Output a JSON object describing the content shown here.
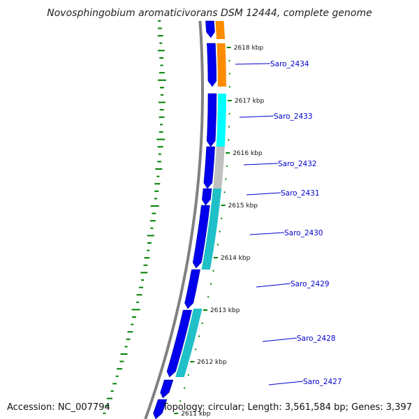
{
  "title": "Novosphingobium aromaticivorans DSM 12444, complete genome",
  "accession": "Accession: NC_007794",
  "summary": "Topology: circular; Length: 3,561,584 bp; Genes: 3,397",
  "colors": {
    "forward_strand": "#0000ee",
    "backbone": "#808080",
    "gc_tick": "#008000",
    "label": "#0000cc"
  },
  "kbp_ticks": [
    "2618 kbp",
    "2617 kbp",
    "2616 kbp",
    "2615 kbp",
    "2614 kbp",
    "2613 kbp",
    "2612 kbp",
    "2611 kbp"
  ],
  "genes": [
    {
      "label": "Saro_2434",
      "feature_color": "#ff8c00"
    },
    {
      "label": "Saro_2433",
      "feature_color": "#00ffff"
    },
    {
      "label": "Saro_2432",
      "feature_color": "#c0c0c0"
    },
    {
      "label": "Saro_2431",
      "feature_color": "#20c0c8"
    },
    {
      "label": "Saro_2430",
      "feature_color": "#20c0c8"
    },
    {
      "label": "Saro_2429",
      "feature_color": ""
    },
    {
      "label": "Saro_2428",
      "feature_color": "#20c0c8"
    },
    {
      "label": "Saro_2427",
      "feature_color": ""
    }
  ]
}
